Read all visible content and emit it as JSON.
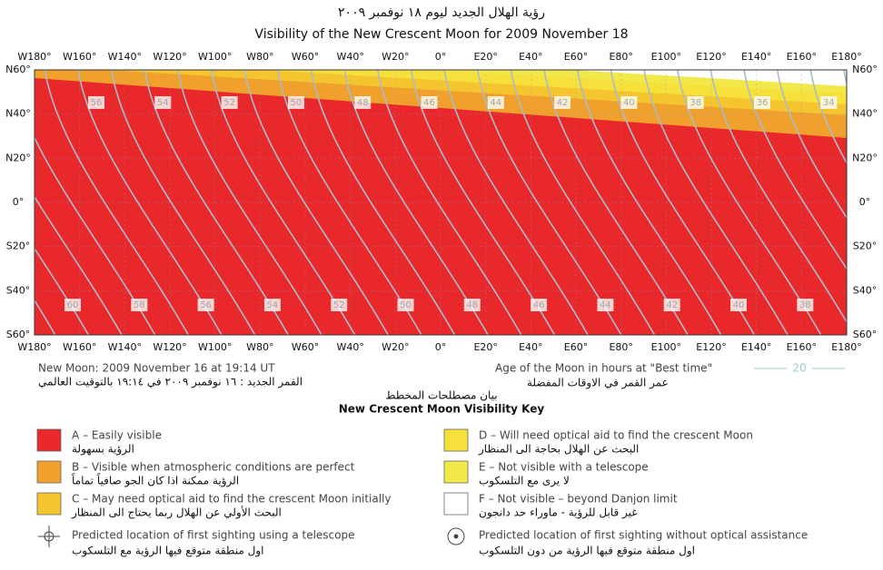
{
  "title_ar": "رؤية الهلال الجديد ليوم ١٨ نوفمبر ٢٠٠٩",
  "title_en": "Visibility of the New Crescent Moon for 2009 November 18",
  "map": {
    "lon_labels": [
      "W180°",
      "W160°",
      "W140°",
      "W120°",
      "W100°",
      "W80°",
      "W60°",
      "W40°",
      "W20°",
      "0°",
      "E20°",
      "E40°",
      "E60°",
      "E80°",
      "E100°",
      "E120°",
      "E140°",
      "E160°",
      "E180°"
    ],
    "lat_labels": [
      "N60°",
      "N40°",
      "N20°",
      "0°",
      "S20°",
      "S40°",
      "S60°"
    ],
    "contour_labels_north": [
      56,
      54,
      52,
      50,
      48,
      46,
      44,
      42,
      40,
      38,
      36,
      34
    ],
    "contour_labels_south": [
      60,
      58,
      56,
      54,
      52,
      50,
      48,
      46,
      44,
      42,
      40,
      38
    ]
  },
  "footer": {
    "new_moon_en": "New Moon: 2009 November 16 at 19:14 UT",
    "new_moon_ar": "القمر الجديد : ١٦ نوفمبر ٢٠٠٩ في ١٩:١٤ بالتوقيت العالمي",
    "age_en": "Age of the Moon in hours at \"Best time\"",
    "age_sample": 20,
    "age_ar": "عمر القمر في الاوقات المفضلة"
  },
  "key": {
    "title_ar": "بيان مصطلحات المخطط",
    "title_en": "New Crescent Moon Visibility Key",
    "zones": [
      {
        "label_en": "A – Easily visible",
        "label_ar": "الرؤية بسهولة",
        "color": "#e8282a"
      },
      {
        "label_en": "B – Visible when atmospheric conditions are perfect",
        "label_ar": "الرؤية ممكنة اذا كان الجو صافياً تماماً",
        "color": "#f0a02c"
      },
      {
        "label_en": "C – May need optical aid to find the crescent Moon initially",
        "label_ar": "البحث الأولي عن الهلال ربما يحتاج الى المنظار",
        "color": "#f5c530"
      },
      {
        "label_en": "D – Will need optical aid to find the crescent Moon",
        "label_ar": "البحث عن الهلال بحاجة الى المنظار",
        "color": "#f5e03c"
      },
      {
        "label_en": "E – Not visible with a telescope",
        "label_ar": "لا يرى مع التلسكوب",
        "color": "#f3e84a"
      },
      {
        "label_en": "F – Not visible – beyond Danjon limit",
        "label_ar": "غير قابل للرؤية - ماوراء حد دانجون",
        "color": "#ffffff"
      }
    ],
    "markers": [
      {
        "label_en": "Predicted location of first sighting using a telescope",
        "label_ar": "اول منطقة متوقع فيها الرؤية مع التلسكوب"
      },
      {
        "label_en": "Predicted location of first sighting without optical assistance",
        "label_ar": "اول منطقة متوقع فيها الرؤية من دون التلسكوب"
      }
    ]
  }
}
